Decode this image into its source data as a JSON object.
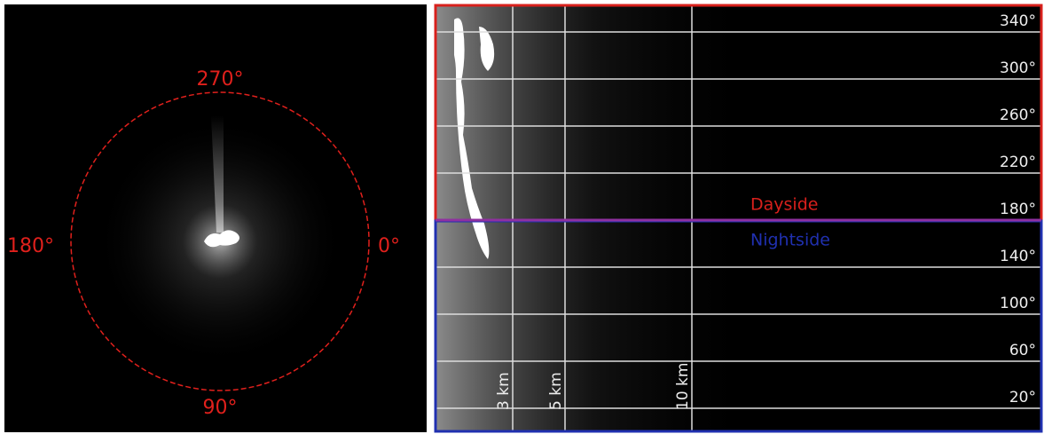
{
  "left_panel": {
    "angle_labels": [
      "270°",
      "180°",
      "0°",
      "90°"
    ]
  },
  "right_panel": {
    "angle_labels": [
      "340°",
      "300°",
      "260°",
      "220°",
      "180°",
      "140°",
      "100°",
      "60°",
      "20°"
    ],
    "distance_labels": [
      "3 km",
      "5 km",
      "10 km"
    ],
    "regions": [
      "Dayside",
      "Nightside"
    ]
  }
}
